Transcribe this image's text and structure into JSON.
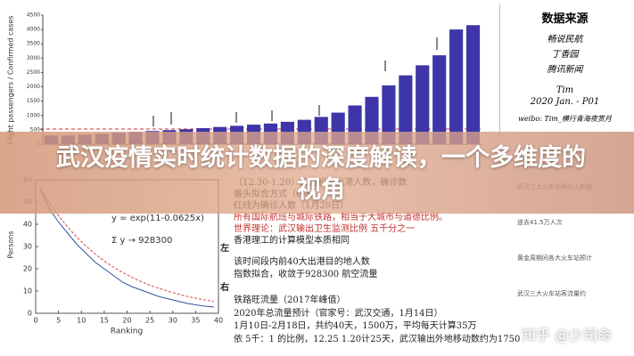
{
  "chart_data": [
    {
      "type": "bar",
      "y_label": "Flight passengers / Confirmed cases",
      "color": "#3d35a8",
      "categories": [
        null,
        null,
        null,
        null,
        null,
        null,
        null,
        null,
        null,
        null,
        null,
        null,
        null,
        null,
        null,
        null,
        null,
        null,
        null,
        null,
        null,
        null,
        null,
        null,
        null,
        null
      ],
      "values": [
        300,
        300,
        330,
        360,
        400,
        430,
        460,
        490,
        520,
        560,
        600,
        640,
        680,
        720,
        780,
        850,
        950,
        1100,
        1350,
        1650,
        2050,
        2400,
        2750,
        3100,
        4000,
        4150
      ],
      "ylim": [
        0,
        4500
      ],
      "yticks": [
        0,
        500,
        1000,
        1500,
        2000,
        2500,
        3000,
        3500,
        4000,
        4500
      ]
    },
    {
      "type": "line",
      "x_label": "Ranking",
      "y_label": "Persons",
      "formula": "y = exp(11-0.0625x)",
      "sum_note": "Σ y → 928300",
      "x": [
        1,
        3,
        5,
        7,
        9,
        11,
        13,
        15,
        17,
        19,
        21,
        23,
        25,
        27,
        29,
        31,
        33,
        35,
        37,
        39
      ],
      "series": [
        {
          "color": "#2f55a4",
          "values": [
            56,
            47,
            41,
            36,
            31,
            27,
            23,
            20,
            17,
            14,
            12,
            10.5,
            9,
            7.5,
            6.5,
            5.5,
            4.5,
            3.8,
            3.2,
            2.8
          ]
        },
        {
          "color": "#d9453d",
          "values": [
            56.3,
            49.7,
            43.9,
            38.8,
            34.2,
            30.2,
            26.7,
            23.5,
            20.8,
            18.4,
            16.2,
            14.3,
            12.6,
            11.2,
            9.9,
            8.7,
            7.7,
            6.8,
            6.0,
            5.3
          ]
        }
      ],
      "xlim": [
        0,
        40
      ],
      "xticks": [
        0,
        5,
        10,
        15,
        20,
        25,
        30,
        35,
        40
      ],
      "ylim": [
        0,
        60
      ],
      "yticks": [
        0,
        10,
        20,
        30,
        40,
        50,
        60
      ]
    }
  ],
  "notes": [
    "（12.30-1.20）天河机场出港人数，确诊数",
    "番头拟合方式（6/8）",
    "红线为确诊人数（1月20日）",
    "所有国际航班与城际铁路，相当于大城市与道德比例。",
    "世界理论：武汉输出卫生监测比例 五千分之一",
    "香港理工的计算模型本质相同",
    "左",
    "该时间段内前40大出港目的地人数",
    "指数拟合，收敛于928300   航空流量",
    "右",
    "铁路旺流量（2017年峰值）",
    "2020年总流量预计（官家号：武汉交通，1月14日）",
    "1月10日-2月18日，共约40天，1500万，平均每天计算35万",
    "依 5千：1 的比例，12.25 1.20计25天，武汉输出外地移动数约为1750"
  ],
  "source_panel": {
    "title": "数据来源",
    "items": [
      "畅说民航",
      "丁香园",
      "腾讯新闻"
    ],
    "author": "Tim",
    "date": "2020 Jan. - P01",
    "weibo": "weibo: Tim_横行青海夜赏月"
  },
  "phone_lines": [
    "武汉三大火车站确诊人数据",
    "遥去41.5万人次",
    "黄金周期间各大火车站预计",
    "武汉三大火车站客流量约"
  ],
  "banner": {
    "title": "武汉疫情实时统计数据的深度解读，一个多维度的视角"
  },
  "watermark": "知乎 @少司命"
}
